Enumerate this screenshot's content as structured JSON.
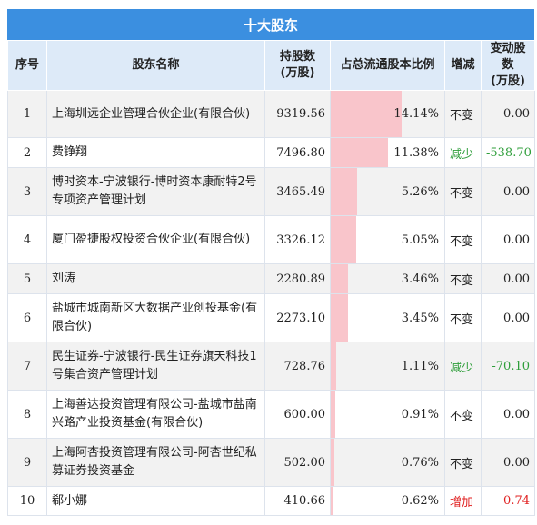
{
  "title": "十大股东",
  "headers": {
    "idx": "序号",
    "name": "股东名称",
    "shares_line1": "持股数",
    "shares_line2": "(万股)",
    "ratio": "占总流通股本比例",
    "change": "增减",
    "delta_line1": "变动股数",
    "delta_line2": "(万股)"
  },
  "colors": {
    "header_bar": "#3b8fe0",
    "header_row": "#ddeaf8",
    "ratio_bar": "#f9c5cb",
    "decrease": "#2e9e3a",
    "increase": "#e02020"
  },
  "ratio_scale_max": 14.14,
  "rows": [
    {
      "idx": "1",
      "name": "上海圳远企业管理合伙企业(有限合伙)",
      "shares": "9319.56",
      "ratio": "14.14%",
      "ratio_value": 14.14,
      "change": "不变",
      "change_type": "same",
      "delta": "0.00",
      "h": 52
    },
    {
      "idx": "2",
      "name": "费铮翔",
      "shares": "7496.80",
      "ratio": "11.38%",
      "ratio_value": 11.38,
      "change": "减少",
      "change_type": "down",
      "delta": "-538.70",
      "h": 33
    },
    {
      "idx": "3",
      "name": "博时资本-宁波银行-博时资本康耐特2号专项资产管理计划",
      "shares": "3465.49",
      "ratio": "5.26%",
      "ratio_value": 5.26,
      "change": "不变",
      "change_type": "same",
      "delta": "0.00",
      "h": 53
    },
    {
      "idx": "4",
      "name": "厦门盈捷股权投资合伙企业(有限合伙)",
      "shares": "3326.12",
      "ratio": "5.05%",
      "ratio_value": 5.05,
      "change": "不变",
      "change_type": "same",
      "delta": "0.00",
      "h": 53
    },
    {
      "idx": "5",
      "name": "刘涛",
      "shares": "2280.89",
      "ratio": "3.46%",
      "ratio_value": 3.46,
      "change": "不变",
      "change_type": "same",
      "delta": "0.00",
      "h": 33
    },
    {
      "idx": "6",
      "name": "盐城市城南新区大数据产业创投基金(有限合伙)",
      "shares": "2273.10",
      "ratio": "3.45%",
      "ratio_value": 3.45,
      "change": "不变",
      "change_type": "same",
      "delta": "0.00",
      "h": 53
    },
    {
      "idx": "7",
      "name": "民生证券-宁波银行-民生证券旗天科技1号集合资产管理计划",
      "shares": "728.76",
      "ratio": "1.11%",
      "ratio_value": 1.11,
      "change": "减少",
      "change_type": "down",
      "delta": "-70.10",
      "h": 53
    },
    {
      "idx": "8",
      "name": "上海善达投资管理有限公司-盐城市盐南兴路产业投资基金(有限合伙)",
      "shares": "600.00",
      "ratio": "0.91%",
      "ratio_value": 0.91,
      "change": "不变",
      "change_type": "same",
      "delta": "0.00",
      "h": 53
    },
    {
      "idx": "9",
      "name": "上海阿杏投资管理有限公司-阿杏世纪私募证券投资基金",
      "shares": "502.00",
      "ratio": "0.76%",
      "ratio_value": 0.76,
      "change": "不变",
      "change_type": "same",
      "delta": "0.00",
      "h": 53
    },
    {
      "idx": "10",
      "name": "郗小娜",
      "shares": "410.66",
      "ratio": "0.62%",
      "ratio_value": 0.62,
      "change": "增加",
      "change_type": "up",
      "delta": "0.74",
      "h": 32
    }
  ]
}
